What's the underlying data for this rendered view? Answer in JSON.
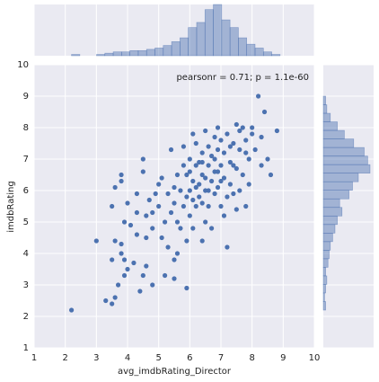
{
  "chart_data": {
    "type": "scatter",
    "xlabel": "avg_imdbRating_Director",
    "ylabel": "imdbRating",
    "annotation": "pearsonr = 0.71; p = 1.1e-60",
    "color": "#4c72b0",
    "grid": true,
    "xlim": [
      1,
      10
    ],
    "ylim": [
      1,
      10
    ],
    "xticks": [
      1,
      2,
      3,
      4,
      5,
      6,
      7,
      8,
      9,
      10
    ],
    "yticks": [
      1,
      2,
      3,
      4,
      5,
      6,
      7,
      8,
      9,
      10
    ],
    "x": [
      2.2,
      3.3,
      3.5,
      3.6,
      3.7,
      3.9,
      3.0,
      3.6,
      3.8,
      3.5,
      3.9,
      4.0,
      4.2,
      4.4,
      4.5,
      4.6,
      4.8,
      5.2,
      5.5,
      5.5,
      5.9,
      5.6,
      3.5,
      3.6,
      3.8,
      3.8,
      3.9,
      4.1,
      4.0,
      4.3,
      4.3,
      4.6,
      4.8,
      4.9,
      4.5,
      4.5,
      5.0,
      5.1,
      5.2,
      5.3,
      5.4,
      5.5,
      5.4,
      5.6,
      5.7,
      5.8,
      5.9,
      5.9,
      6.0,
      6.0,
      6.0,
      6.1,
      6.1,
      6.2,
      6.2,
      6.2,
      6.3,
      6.3,
      6.4,
      6.4,
      6.4,
      6.5,
      6.5,
      6.5,
      6.6,
      6.6,
      6.6,
      6.7,
      6.7,
      6.8,
      6.8,
      6.8,
      6.9,
      6.9,
      7.0,
      7.0,
      7.0,
      7.1,
      7.1,
      7.2,
      7.2,
      7.2,
      7.3,
      7.3,
      7.4,
      7.4,
      7.5,
      7.5,
      7.6,
      7.6,
      7.7,
      7.7,
      7.8,
      7.8,
      7.9,
      7.9,
      8.0,
      8.1,
      8.2,
      8.3,
      8.4,
      8.5,
      8.8,
      8.6,
      6.1,
      6.3,
      6.7,
      6.9,
      5.7,
      5.3,
      5.1,
      4.7,
      6.0,
      6.2,
      6.5,
      7.0,
      7.3,
      6.6,
      5.8,
      5.6,
      4.3,
      3.8,
      7.8,
      8.0,
      7.4,
      6.8,
      6.4,
      5.9,
      5.5,
      5.0,
      4.8,
      4.6,
      6.1,
      5.8,
      7.1,
      6.4,
      6.9,
      7.6,
      7.5,
      8.3
    ],
    "values": [
      2.2,
      2.5,
      2.4,
      2.6,
      3.0,
      3.3,
      4.4,
      4.4,
      4.0,
      3.8,
      3.8,
      3.5,
      3.7,
      2.8,
      3.3,
      3.6,
      3.0,
      3.3,
      3.2,
      3.8,
      2.9,
      4.0,
      5.5,
      6.1,
      6.3,
      6.5,
      5.0,
      4.9,
      5.6,
      5.3,
      4.6,
      5.2,
      4.8,
      5.9,
      6.6,
      7.0,
      5.5,
      4.5,
      5.0,
      4.2,
      5.3,
      6.1,
      7.3,
      5.0,
      4.8,
      5.5,
      4.4,
      6.5,
      5.2,
      6.0,
      7.0,
      4.8,
      6.3,
      5.5,
      7.5,
      6.8,
      5.8,
      6.2,
      4.4,
      7.2,
      6.5,
      5.0,
      6.0,
      7.9,
      5.5,
      6.8,
      7.4,
      6.3,
      4.8,
      7.0,
      5.9,
      6.6,
      8.0,
      6.1,
      7.6,
      5.5,
      6.8,
      6.4,
      7.2,
      4.2,
      5.8,
      7.8,
      6.9,
      6.2,
      7.5,
      5.9,
      8.1,
      6.7,
      7.3,
      6.0,
      8.0,
      6.5,
      7.6,
      5.5,
      7.0,
      6.2,
      7.8,
      7.3,
      9.0,
      7.7,
      8.5,
      7.0,
      7.9,
      6.5,
      5.7,
      6.9,
      7.1,
      6.6,
      6.0,
      5.9,
      6.4,
      5.7,
      6.6,
      6.1,
      6.4,
      6.3,
      7.4,
      6.0,
      6.8,
      6.5,
      5.9,
      4.3,
      7.2,
      8.0,
      6.8,
      7.7,
      5.6,
      5.8,
      5.6,
      6.2,
      5.3,
      4.5,
      7.8,
      7.4,
      5.2,
      6.9,
      7.3,
      7.9,
      5.4,
      6.8
    ],
    "x_histogram": {
      "bins": [
        2.2,
        2.468,
        2.736,
        3.004,
        3.272,
        3.54,
        3.808,
        4.076,
        4.344,
        4.612,
        4.88,
        5.148,
        5.416,
        5.684,
        5.952,
        6.22,
        6.488,
        6.756,
        7.024,
        7.292,
        7.56,
        7.828,
        8.096,
        8.364,
        8.632,
        8.9
      ],
      "counts": [
        1,
        0,
        0,
        1,
        2,
        3,
        3,
        4,
        4,
        5,
        6,
        8,
        11,
        14,
        22,
        26,
        36,
        40,
        28,
        22,
        14,
        9,
        6,
        3,
        1
      ]
    },
    "y_histogram": {
      "bins": [
        2.2,
        2.472,
        2.744,
        3.016,
        3.288,
        3.56,
        3.832,
        4.104,
        4.376,
        4.648,
        4.92,
        5.192,
        5.464,
        5.736,
        6.008,
        6.28,
        6.552,
        6.824,
        7.096,
        7.368,
        7.64,
        7.912,
        8.184,
        8.456,
        8.728,
        9.0
      ],
      "counts": [
        2,
        1,
        2,
        3,
        2,
        4,
        5,
        6,
        8,
        10,
        12,
        16,
        14,
        22,
        25,
        30,
        40,
        38,
        35,
        26,
        18,
        12,
        6,
        3,
        2
      ]
    }
  }
}
